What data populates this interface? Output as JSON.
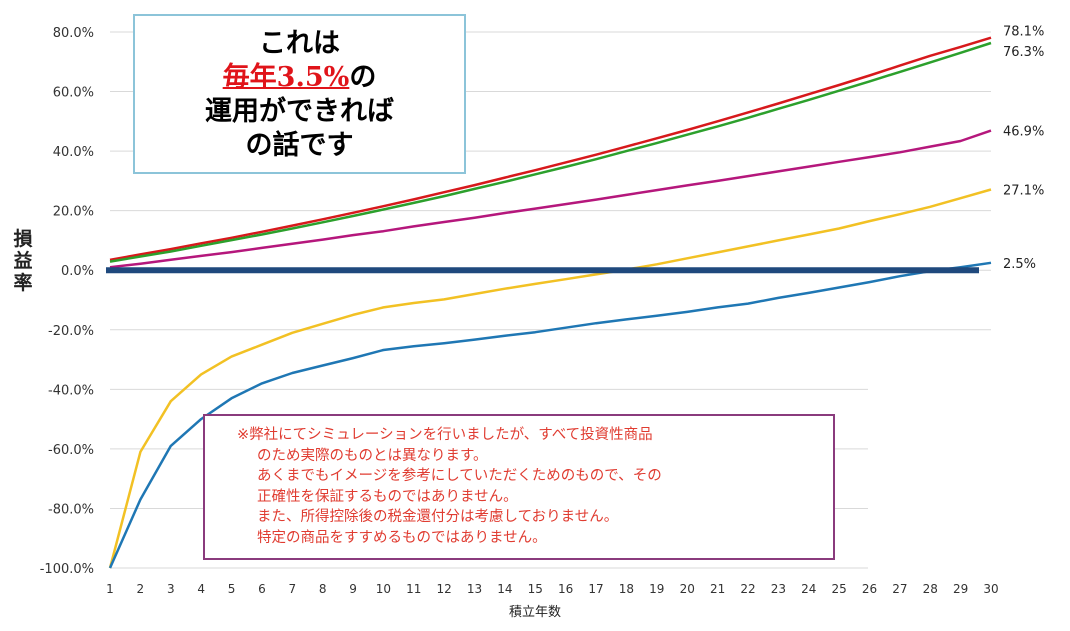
{
  "chart_data": {
    "type": "line",
    "title": "",
    "xlabel": "積立年数",
    "ylabel": "損益率",
    "x": [
      1,
      2,
      3,
      4,
      5,
      6,
      7,
      8,
      9,
      10,
      11,
      12,
      13,
      14,
      15,
      16,
      17,
      18,
      19,
      20,
      21,
      22,
      23,
      24,
      25,
      26,
      27,
      28,
      29,
      30
    ],
    "ylim": [
      -100,
      80
    ],
    "yticks": [
      80,
      60,
      40,
      20,
      0,
      -20,
      -40,
      -60,
      -80,
      -100
    ],
    "ytick_labels": [
      "80.0%",
      "60.0%",
      "40.0%",
      "20.0%",
      "0.0%",
      "-20.0%",
      "-40.0%",
      "-60.0%",
      "-80.0%",
      "-100.0%"
    ],
    "grid": true,
    "legend": "none",
    "series": [
      {
        "color": "#d7191c",
        "end_label": "78.1%",
        "values": [
          3.5,
          5.3,
          7.1,
          9.0,
          10.9,
          12.9,
          15.0,
          17.1,
          19.3,
          21.5,
          23.8,
          26.2,
          28.6,
          31.1,
          33.6,
          36.2,
          38.8,
          41.5,
          44.3,
          47.1,
          50.0,
          53.0,
          56.0,
          59.1,
          62.2,
          65.4,
          68.7,
          72.0,
          75.0,
          78.1
        ]
      },
      {
        "color": "#2ca02c",
        "end_label": "76.3%",
        "values": [
          2.9,
          4.6,
          6.3,
          8.2,
          10.1,
          12.0,
          14.0,
          16.1,
          18.2,
          20.4,
          22.6,
          24.9,
          27.3,
          29.7,
          32.2,
          34.7,
          37.3,
          40.0,
          42.7,
          45.5,
          48.3,
          51.2,
          54.2,
          57.2,
          60.3,
          63.4,
          66.6,
          69.8,
          73.0,
          76.3
        ]
      },
      {
        "color": "#b5177c",
        "end_label": "46.9%",
        "values": [
          1.0,
          2.2,
          3.5,
          4.8,
          6.1,
          7.5,
          8.9,
          10.3,
          11.8,
          13.1,
          14.7,
          16.2,
          17.6,
          19.2,
          20.7,
          22.2,
          23.7,
          25.3,
          26.9,
          28.5,
          30.0,
          31.6,
          33.2,
          34.8,
          36.4,
          38.0,
          39.6,
          41.5,
          43.4,
          46.9
        ]
      },
      {
        "color": "#f2c124",
        "end_label": "27.1%",
        "values": [
          -100.0,
          -61.0,
          -44.0,
          -35.0,
          -29.0,
          -25.0,
          -21.0,
          -18.0,
          -15.0,
          -12.5,
          -11.0,
          -9.8,
          -8.0,
          -6.2,
          -4.6,
          -3.0,
          -1.4,
          0.2,
          2.0,
          4.0,
          6.0,
          8.0,
          10.0,
          12.0,
          14.0,
          16.5,
          18.8,
          21.3,
          24.2,
          27.1
        ]
      },
      {
        "color": "#1f77b4",
        "end_label": "2.5%",
        "values": [
          -100.0,
          -77.0,
          -59.0,
          -50.0,
          -43.0,
          -38.0,
          -34.5,
          -32.0,
          -29.5,
          -26.8,
          -25.5,
          -24.5,
          -23.3,
          -22.0,
          -20.8,
          -19.3,
          -17.8,
          -16.5,
          -15.3,
          -14.0,
          -12.5,
          -11.2,
          -9.3,
          -7.6,
          -5.8,
          -4.0,
          -2.0,
          -0.3,
          1.0,
          2.5
        ]
      }
    ],
    "baseline": {
      "value": 0,
      "color": "#1f497d"
    }
  },
  "headline": {
    "line1": "これは",
    "line2_red": "毎年3.5%",
    "line2_rest": "の",
    "line3": "運用ができれば",
    "line4": "の話です"
  },
  "ylabel_chars": [
    "損",
    "益",
    "率"
  ],
  "note": {
    "line1": "※弊社にてシミュレーションを行いましたが、すべて投資性商品",
    "line2": "のため実際のものとは異なります。",
    "line3": "あくまでもイメージを参考にしていただくためのもので、その",
    "line4": "正確性を保証するものではありません。",
    "line5": "また、所得控除後の税金還付分は考慮しておりません。",
    "line6": "特定の商品をすすめるものではありません。"
  }
}
